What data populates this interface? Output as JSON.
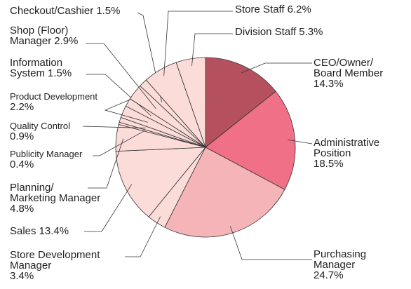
{
  "chart_data": {
    "type": "pie",
    "categories": [
      "CEO/Owner/\nBoard Member",
      "Administrative\nPosition",
      "Purchasing\nManager",
      "Store Development\nManager",
      "Sales",
      "Planning/\nMarketing Manager",
      "Publicity Manager",
      "Quality Control",
      "Product Development",
      "Information\nSystem",
      "Shop (Floor)\nManager",
      "Checkout/Cashier",
      "Store Staff",
      "Division Staff"
    ],
    "values": [
      14.3,
      18.5,
      24.7,
      3.4,
      13.4,
      4.8,
      0.4,
      0.9,
      2.2,
      1.5,
      2.9,
      1.5,
      6.2,
      5.3
    ],
    "value_labels": [
      "14.3%",
      "18.5%",
      "24.7%",
      "3.4%",
      "13.4%",
      "4.8%",
      "0.4%",
      "0.9%",
      "2.2%",
      "1.5%",
      "2.9%",
      "1.5%",
      "6.2%",
      "5.3%"
    ],
    "colors": [
      "#b5515f",
      "#f07088",
      "#f5b5b8",
      "#fbdcd8",
      "#fbdcd8",
      "#fbdcd8",
      "#fbdcd8",
      "#fbdcd8",
      "#fbdcd8",
      "#fbdcd8",
      "#fbdcd8",
      "#fbdcd8",
      "#fbdcd8",
      "#fbdcd8"
    ]
  }
}
